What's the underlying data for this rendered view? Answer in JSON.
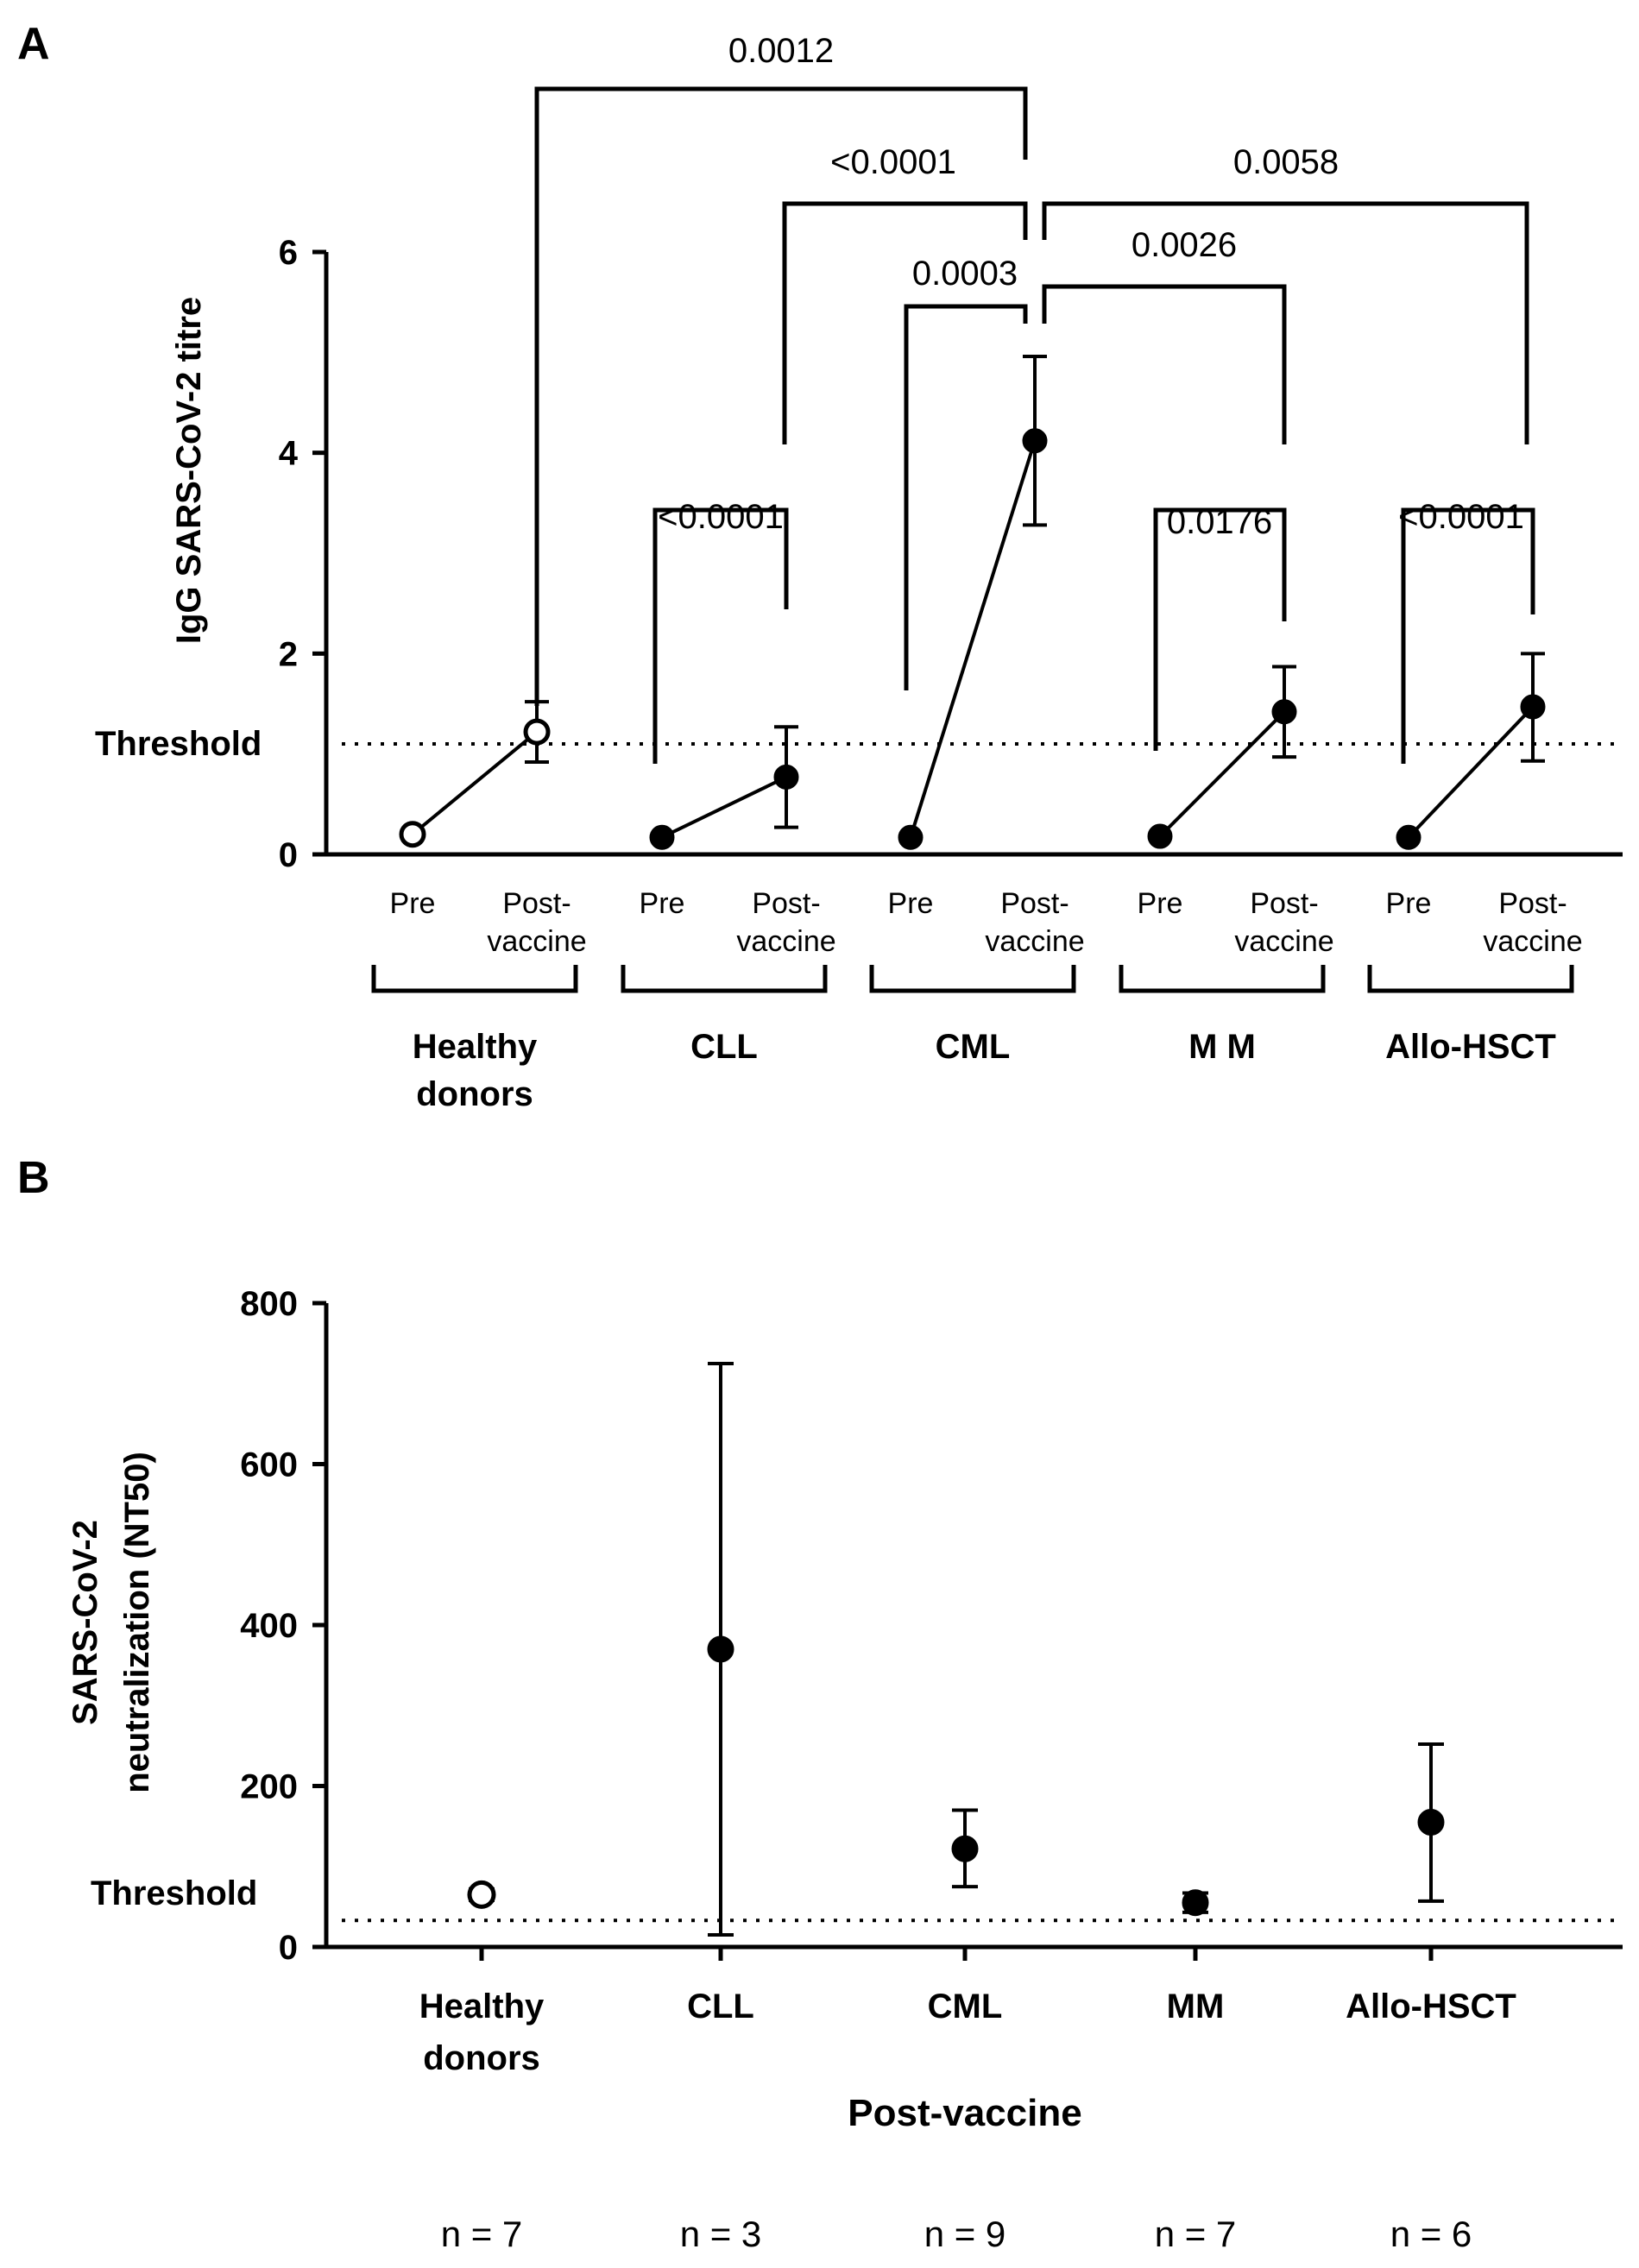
{
  "chart_data": [
    {
      "panel": "A",
      "type": "line",
      "ylabel": "IgG SARS-CoV-2 titre",
      "ylim": [
        0,
        6
      ],
      "yticks": [
        "0",
        "2",
        "4",
        "6"
      ],
      "threshold": {
        "label": "Threshold",
        "value": 1.1
      },
      "x_sublabels": {
        "pre": "Pre",
        "post_line1": "Post-",
        "post_line2": "vaccine"
      },
      "groups": [
        {
          "name_lines": [
            "Healthy",
            "donors"
          ],
          "open_marker": true,
          "pre": {
            "mean": 0.2,
            "err": 0
          },
          "post": {
            "mean": 1.22,
            "err_low": 0.92,
            "err_high": 1.52
          }
        },
        {
          "name_lines": [
            "CLL"
          ],
          "open_marker": false,
          "pre": {
            "mean": 0.17,
            "err": 0
          },
          "post": {
            "mean": 0.77,
            "err_low": 0.27,
            "err_high": 1.27
          }
        },
        {
          "name_lines": [
            "CML"
          ],
          "open_marker": false,
          "pre": {
            "mean": 0.17,
            "err": 0
          },
          "post": {
            "mean": 4.12,
            "err_low": 3.28,
            "err_high": 4.96
          }
        },
        {
          "name_lines": [
            "M M"
          ],
          "open_marker": false,
          "pre": {
            "mean": 0.18,
            "err": 0
          },
          "post": {
            "mean": 1.42,
            "err_low": 0.97,
            "err_high": 1.87
          }
        },
        {
          "name_lines": [
            "Allo-HSCT"
          ],
          "open_marker": false,
          "pre": {
            "mean": 0.17,
            "err": 0
          },
          "post": {
            "mean": 1.47,
            "err_low": 0.93,
            "err_high": 2.0
          }
        }
      ],
      "comparisons": [
        {
          "label": "0.0012",
          "from": "Healthy donors post",
          "to": "CML post"
        },
        {
          "label": "<0.0001",
          "from": "CLL post",
          "to": "CML post"
        },
        {
          "label": "0.0058",
          "from": "CML post",
          "to": "Allo-HSCT post"
        },
        {
          "label": "0.0003",
          "from": "CML pre",
          "to": "CML post"
        },
        {
          "label": "0.0026",
          "from": "CML post",
          "to": "M M post"
        },
        {
          "label": "<0.0001",
          "from": "CLL pre",
          "to": "CLL post"
        },
        {
          "label": "0.0176",
          "from": "M M pre",
          "to": "M M post"
        },
        {
          "label": "<0.0001",
          "from": "Allo-HSCT pre",
          "to": "Allo-HSCT post"
        }
      ]
    },
    {
      "panel": "B",
      "type": "scatter",
      "ylabel_lines": [
        "SARS-CoV-2",
        "neutralization (NT50)"
      ],
      "xlabel": "Post-vaccine",
      "ylim": [
        0,
        800
      ],
      "yticks": [
        "0",
        "200",
        "400",
        "600",
        "800"
      ],
      "threshold": {
        "label": "Threshold",
        "value": 33
      },
      "categories": [
        {
          "name_lines": [
            "Healthy",
            "donors"
          ],
          "open_marker": true,
          "mean": 65,
          "err_low": 58,
          "err_high": 72,
          "n": "n = 7"
        },
        {
          "name_lines": [
            "CLL"
          ],
          "open_marker": false,
          "mean": 370,
          "err_low": 15,
          "err_high": 725,
          "n": "n = 3"
        },
        {
          "name_lines": [
            "CML"
          ],
          "open_marker": false,
          "mean": 122,
          "err_low": 75,
          "err_high": 170,
          "n": "n = 9"
        },
        {
          "name_lines": [
            "MM"
          ],
          "open_marker": false,
          "mean": 55,
          "err_low": 43,
          "err_high": 67,
          "n": "n = 7"
        },
        {
          "name_lines": [
            "Allo-HSCT"
          ],
          "open_marker": false,
          "mean": 155,
          "err_low": 57,
          "err_high": 252,
          "n": "n = 6"
        }
      ]
    }
  ],
  "labels": {
    "panel_a": "A",
    "panel_b": "B"
  }
}
